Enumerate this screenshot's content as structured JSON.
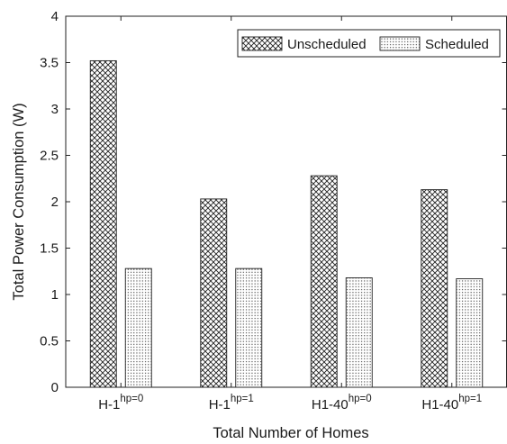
{
  "chart_data": {
    "type": "bar",
    "categories": [
      "H-1",
      "H-1",
      "H1-40",
      "H1-40"
    ],
    "category_superscripts": [
      "hp=0",
      "hp=1",
      "hp=0",
      "hp=1"
    ],
    "series": [
      {
        "name": "Unscheduled",
        "values": [
          3.52,
          2.03,
          2.28,
          2.13
        ],
        "pattern": "crosshatch"
      },
      {
        "name": "Scheduled",
        "values": [
          1.28,
          1.28,
          1.18,
          1.17
        ],
        "pattern": "dots"
      }
    ],
    "xlabel": "Total Number of Homes",
    "ylabel": "Total Power Consumption (W)",
    "ylim": [
      0,
      4
    ],
    "yticks": [
      "0",
      "0.5",
      "1",
      "1.5",
      "2",
      "2.5",
      "3",
      "3.5",
      "4"
    ],
    "grid": false,
    "legend_position": "top-right"
  }
}
